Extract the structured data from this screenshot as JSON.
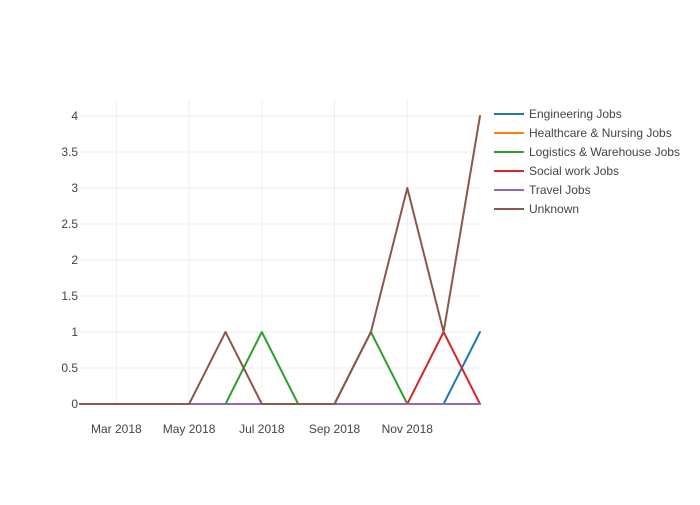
{
  "chart_data": {
    "type": "line",
    "title": "",
    "xlabel": "",
    "ylabel": "",
    "x": [
      "2018-02",
      "2018-03",
      "2018-04",
      "2018-05",
      "2018-06",
      "2018-07",
      "2018-08",
      "2018-09",
      "2018-10",
      "2018-11",
      "2018-12",
      "2019-01"
    ],
    "xlim": [
      "2018-02",
      "2019-01"
    ],
    "ylim": [
      0,
      4
    ],
    "x_ticks": [
      {
        "value": "2018-03",
        "label": "Mar 2018"
      },
      {
        "value": "2018-05",
        "label": "May 2018"
      },
      {
        "value": "2018-07",
        "label": "Jul 2018"
      },
      {
        "value": "2018-09",
        "label": "Sep 2018"
      },
      {
        "value": "2018-11",
        "label": "Nov 2018"
      }
    ],
    "y_ticks": [
      {
        "value": 0,
        "label": "0"
      },
      {
        "value": 0.5,
        "label": "0.5"
      },
      {
        "value": 1,
        "label": "1"
      },
      {
        "value": 1.5,
        "label": "1.5"
      },
      {
        "value": 2,
        "label": "2"
      },
      {
        "value": 2.5,
        "label": "2.5"
      },
      {
        "value": 3,
        "label": "3"
      },
      {
        "value": 3.5,
        "label": "3.5"
      },
      {
        "value": 4,
        "label": "4"
      }
    ],
    "grid": true,
    "legend_position": "top-right",
    "series": [
      {
        "name": "Engineering Jobs",
        "color": "#1f77b4",
        "values": [
          0,
          0,
          0,
          0,
          0,
          0,
          0,
          0,
          0,
          0,
          0,
          1
        ]
      },
      {
        "name": "Healthcare & Nursing Jobs",
        "color": "#ff7f0e",
        "values": [
          0,
          0,
          0,
          0,
          0,
          0,
          0,
          0,
          0,
          0,
          0,
          0
        ]
      },
      {
        "name": "Logistics & Warehouse Jobs",
        "color": "#2ca02c",
        "values": [
          0,
          0,
          0,
          0,
          0,
          1,
          0,
          0,
          1,
          0,
          0,
          0
        ]
      },
      {
        "name": "Social work Jobs",
        "color": "#d62728",
        "values": [
          0,
          0,
          0,
          0,
          0,
          0,
          0,
          0,
          0,
          0,
          1,
          0
        ]
      },
      {
        "name": "Travel Jobs",
        "color": "#9467bd",
        "values": [
          0,
          0,
          0,
          0,
          0,
          0,
          0,
          0,
          0,
          0,
          0,
          0
        ]
      },
      {
        "name": "Unknown",
        "color": "#8c564b",
        "values": [
          0,
          0,
          0,
          0,
          1,
          0,
          0,
          0,
          1,
          3,
          1,
          4
        ]
      }
    ]
  }
}
